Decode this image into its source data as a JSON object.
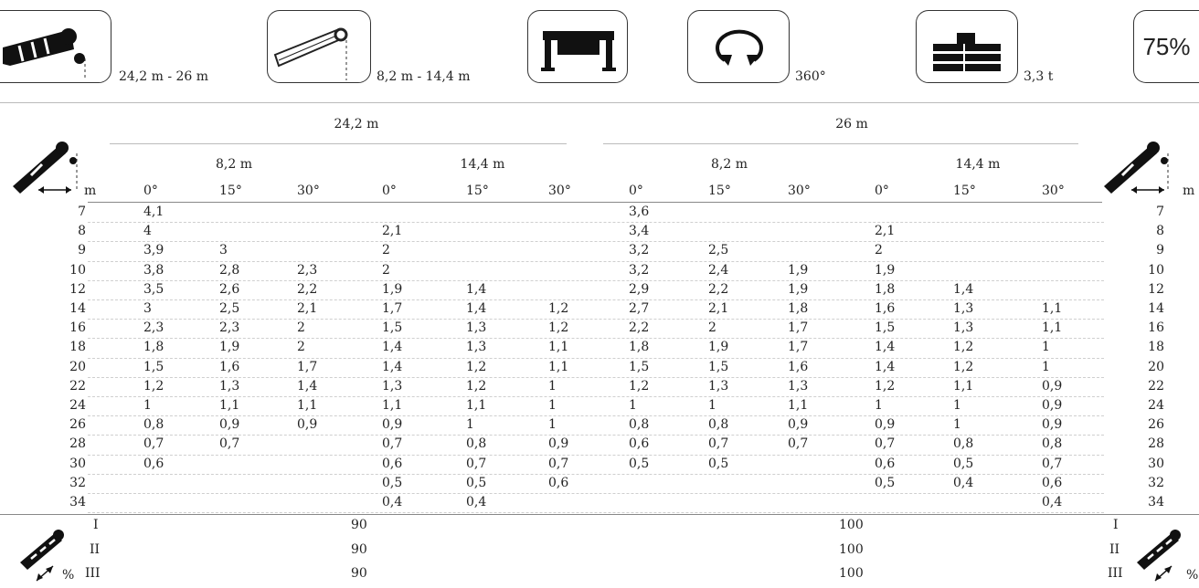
{
  "header": {
    "boom_length_range": "24,2 m - 26 m",
    "jib_length_range": "8,2 m - 14,4 m",
    "rotation": "360°",
    "counterweight": "3,3 t",
    "percent": "75%"
  },
  "table": {
    "boom_groups": [
      "24,2 m",
      "26 m"
    ],
    "jib_groups": [
      "8,2 m",
      "14,4 m",
      "8,2 m",
      "14,4 m"
    ],
    "unit": "m",
    "angles": [
      "0°",
      "15°",
      "30°",
      "0°",
      "15°",
      "30°",
      "0°",
      "15°",
      "30°",
      "0°",
      "15°",
      "30°"
    ],
    "rows": [
      {
        "r": "7",
        "v": [
          "4,1",
          "",
          "",
          "",
          "",
          "",
          "3,6",
          "",
          "",
          "",
          "",
          ""
        ]
      },
      {
        "r": "8",
        "v": [
          "4",
          "",
          "",
          "2,1",
          "",
          "",
          "3,4",
          "",
          "",
          "2,1",
          "",
          ""
        ]
      },
      {
        "r": "9",
        "v": [
          "3,9",
          "3",
          "",
          "2",
          "",
          "",
          "3,2",
          "2,5",
          "",
          "2",
          "",
          ""
        ]
      },
      {
        "r": "10",
        "v": [
          "3,8",
          "2,8",
          "2,3",
          "2",
          "",
          "",
          "3,2",
          "2,4",
          "1,9",
          "1,9",
          "",
          ""
        ]
      },
      {
        "r": "12",
        "v": [
          "3,5",
          "2,6",
          "2,2",
          "1,9",
          "1,4",
          "",
          "2,9",
          "2,2",
          "1,9",
          "1,8",
          "1,4",
          ""
        ]
      },
      {
        "r": "14",
        "v": [
          "3",
          "2,5",
          "2,1",
          "1,7",
          "1,4",
          "1,2",
          "2,7",
          "2,1",
          "1,8",
          "1,6",
          "1,3",
          "1,1"
        ]
      },
      {
        "r": "16",
        "v": [
          "2,3",
          "2,3",
          "2",
          "1,5",
          "1,3",
          "1,2",
          "2,2",
          "2",
          "1,7",
          "1,5",
          "1,3",
          "1,1"
        ]
      },
      {
        "r": "18",
        "v": [
          "1,8",
          "1,9",
          "2",
          "1,4",
          "1,3",
          "1,1",
          "1,8",
          "1,9",
          "1,7",
          "1,4",
          "1,2",
          "1"
        ]
      },
      {
        "r": "20",
        "v": [
          "1,5",
          "1,6",
          "1,7",
          "1,4",
          "1,2",
          "1,1",
          "1,5",
          "1,5",
          "1,6",
          "1,4",
          "1,2",
          "1"
        ]
      },
      {
        "r": "22",
        "v": [
          "1,2",
          "1,3",
          "1,4",
          "1,3",
          "1,2",
          "1",
          "1,2",
          "1,3",
          "1,3",
          "1,2",
          "1,1",
          "0,9"
        ]
      },
      {
        "r": "24",
        "v": [
          "1",
          "1,1",
          "1,1",
          "1,1",
          "1,1",
          "1",
          "1",
          "1",
          "1,1",
          "1",
          "1",
          "0,9"
        ]
      },
      {
        "r": "26",
        "v": [
          "0,8",
          "0,9",
          "0,9",
          "0,9",
          "1",
          "1",
          "0,8",
          "0,8",
          "0,9",
          "0,9",
          "1",
          "0,9"
        ]
      },
      {
        "r": "28",
        "v": [
          "0,7",
          "0,7",
          "",
          "0,7",
          "0,8",
          "0,9",
          "0,6",
          "0,7",
          "0,7",
          "0,7",
          "0,8",
          "0,8"
        ]
      },
      {
        "r": "30",
        "v": [
          "0,6",
          "",
          "",
          "0,6",
          "0,7",
          "0,7",
          "0,5",
          "0,5",
          "",
          "0,6",
          "0,5",
          "0,7"
        ]
      },
      {
        "r": "32",
        "v": [
          "",
          "",
          "",
          "0,5",
          "0,5",
          "0,6",
          "",
          "",
          "",
          "0,5",
          "0,4",
          "0,6"
        ]
      },
      {
        "r": "34",
        "v": [
          "",
          "",
          "",
          "0,4",
          "0,4",
          "",
          "",
          "",
          "",
          "",
          "",
          "0,4"
        ]
      }
    ]
  },
  "footer": {
    "sections": [
      {
        "label": "I",
        "left": "90",
        "right": "100"
      },
      {
        "label": "II",
        "left": "90",
        "right": "100"
      },
      {
        "label": "III",
        "left": "90",
        "right": "100"
      }
    ],
    "percent_symbol": "%"
  }
}
